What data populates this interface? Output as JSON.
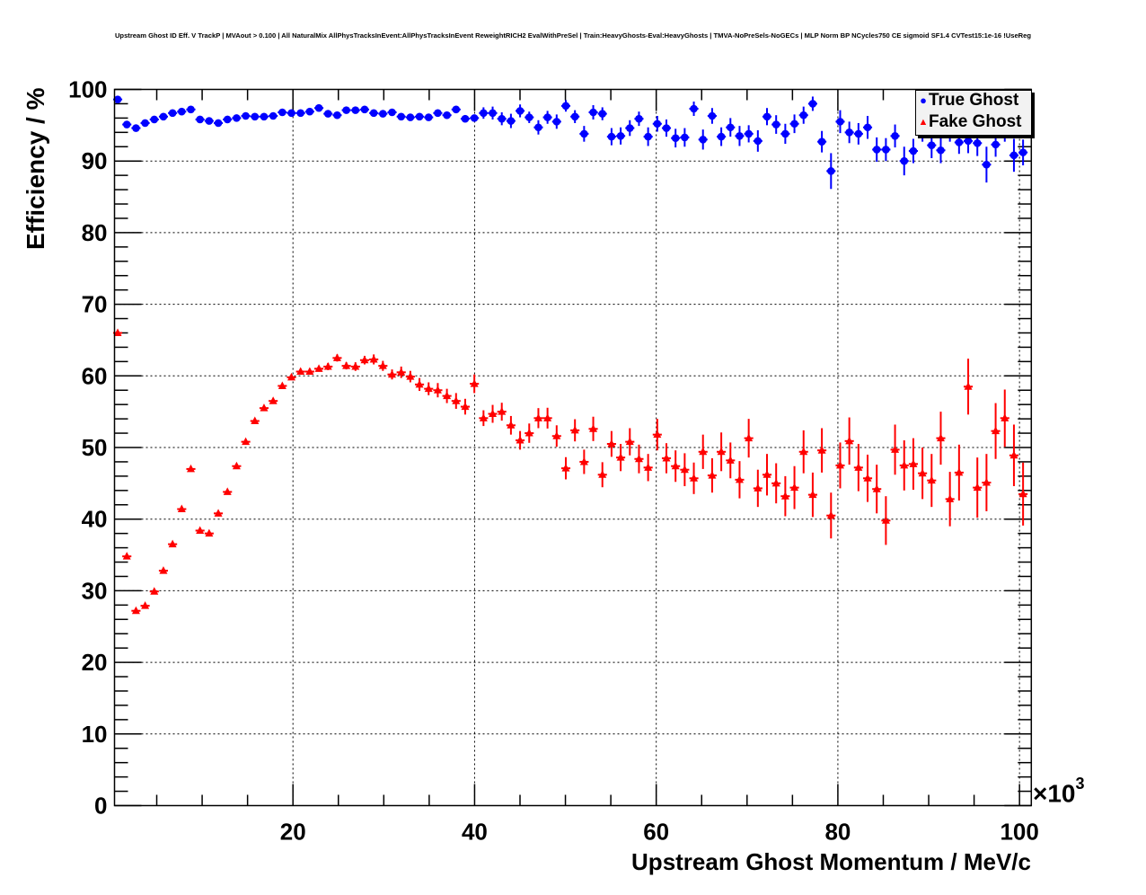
{
  "title": "Upstream Ghost ID Eff. V TrackP | MVAout > 0.100 | All NaturalMix AllPhysTracksInEvent:AllPhysTracksInEvent ReweightRICH2 EvalWithPreSel | Train:HeavyGhosts-Eval:HeavyGhosts | TMVA-NoPreSels-NoGECs | MLP Norm BP NCycles750 CE sigmoid SF1.4 CVTest15:1e-16 !UseReg",
  "chart_data": {
    "type": "scatter",
    "title": "Upstream Ghost ID Eff. V TrackP | MVAout > 0.100 | All NaturalMix AllPhysTracksInEvent:AllPhysTracksInEvent ReweightRICH2 EvalWithPreSel | Train:HeavyGhosts-Eval:HeavyGhosts | TMVA-NoPreSels-NoGECs | MLP Norm BP NCycles750 CE sigmoid SF1.4 CVTest15:1e-16 !UseReg",
    "xlabel": "Upstream Ghost Momentum / MeV/c",
    "ylabel": "Efficiency / %",
    "x_exponent_label": "×10",
    "x_exponent": "3",
    "xlim": [
      0.35,
      101.3
    ],
    "ylim": [
      0,
      100
    ],
    "x_ticks": [
      "20",
      "40",
      "60",
      "80",
      "100"
    ],
    "y_ticks": [
      "0",
      "10",
      "20",
      "30",
      "40",
      "50",
      "60",
      "70",
      "80",
      "90",
      "100"
    ],
    "grid": true,
    "legend_position": "top-right",
    "x_start": 0.7,
    "x_step": 1.007,
    "x_bin_half_width": 0.5,
    "series": [
      {
        "name": "True Ghost",
        "color": "#0000ff",
        "marker": "circle",
        "values": [
          98.6,
          95.1,
          94.6,
          95.3,
          95.8,
          96.2,
          96.7,
          96.9,
          97.2,
          95.8,
          95.6,
          95.3,
          95.8,
          96.0,
          96.3,
          96.2,
          96.2,
          96.3,
          96.8,
          96.7,
          96.7,
          96.9,
          97.4,
          96.6,
          96.4,
          97.1,
          97.1,
          97.2,
          96.7,
          96.6,
          96.8,
          96.2,
          96.1,
          96.2,
          96.1,
          96.7,
          96.4,
          97.2,
          95.9,
          96.0,
          96.7,
          96.7,
          95.9,
          95.6,
          97.0,
          96.1,
          94.7,
          96.1,
          95.5,
          97.7,
          96.2,
          93.8,
          96.8,
          96.6,
          93.4,
          93.5,
          94.6,
          95.9,
          93.4,
          95.2,
          94.6,
          93.2,
          93.3,
          97.3,
          93.0,
          96.3,
          93.4,
          94.7,
          93.5,
          93.8,
          92.8,
          96.2,
          95.1,
          93.8,
          95.2,
          96.4,
          98.0,
          92.7,
          88.6,
          95.5,
          94.0,
          93.8,
          94.7,
          91.6,
          91.6,
          93.5,
          90.0,
          91.4,
          94.5,
          92.2,
          91.5,
          94.5,
          92.6,
          92.8,
          92.5,
          89.5,
          92.3,
          94.5,
          90.8,
          91.2
        ],
        "errors": [
          0.3,
          0.3,
          0.3,
          0.3,
          0.3,
          0.3,
          0.3,
          0.3,
          0.3,
          0.4,
          0.4,
          0.4,
          0.4,
          0.4,
          0.4,
          0.4,
          0.4,
          0.4,
          0.4,
          0.4,
          0.4,
          0.4,
          0.4,
          0.4,
          0.4,
          0.4,
          0.4,
          0.4,
          0.4,
          0.4,
          0.4,
          0.4,
          0.4,
          0.4,
          0.4,
          0.4,
          0.4,
          0.4,
          0.4,
          0.4,
          0.8,
          0.9,
          0.9,
          1.0,
          0.9,
          0.8,
          1.0,
          0.9,
          1.0,
          0.8,
          0.9,
          1.1,
          1.0,
          0.9,
          1.2,
          1.2,
          1.1,
          1.0,
          1.3,
          1.1,
          1.2,
          1.3,
          1.3,
          1.0,
          1.4,
          1.1,
          1.3,
          1.3,
          1.4,
          1.2,
          1.5,
          1.2,
          1.3,
          1.4,
          1.3,
          1.2,
          1.0,
          1.5,
          2.5,
          1.6,
          1.5,
          1.5,
          1.6,
          1.7,
          1.6,
          1.6,
          2.0,
          1.7,
          1.8,
          1.8,
          1.8,
          1.8,
          1.6,
          1.7,
          1.8,
          2.5,
          1.7,
          1.8,
          2.3,
          1.8
        ]
      },
      {
        "name": "Fake Ghost",
        "color": "#ff0000",
        "marker": "triangle",
        "values": [
          66.0,
          34.8,
          27.2,
          27.9,
          29.9,
          32.8,
          36.5,
          41.4,
          47.0,
          38.4,
          38.0,
          40.8,
          43.8,
          47.4,
          50.8,
          53.7,
          55.5,
          56.5,
          58.6,
          59.8,
          60.6,
          60.6,
          61.0,
          61.3,
          62.5,
          61.4,
          61.3,
          62.2,
          62.3,
          61.4,
          60.2,
          60.5,
          59.9,
          58.8,
          58.2,
          58.0,
          57.2,
          56.5,
          55.7,
          58.9,
          54.1,
          54.7,
          55.0,
          53.1,
          51.0,
          52.0,
          54.1,
          54.1,
          51.6,
          47.1,
          52.4,
          48.0,
          52.6,
          46.2,
          50.5,
          48.6,
          50.8,
          48.4,
          47.2,
          51.8,
          48.5,
          47.4,
          46.9,
          45.7,
          49.4,
          46.1,
          49.4,
          48.2,
          45.5,
          51.3,
          44.3,
          46.2,
          45.0,
          43.2,
          44.4,
          49.4,
          43.4,
          49.6,
          40.5,
          47.5,
          50.9,
          47.2,
          45.7,
          44.2,
          39.8,
          49.7,
          47.5,
          47.7,
          46.4,
          45.4,
          51.3,
          42.8,
          46.5,
          58.5,
          44.4,
          45.1,
          52.3,
          54.1,
          48.9,
          43.5
        ],
        "errors": [
          0.3,
          0.3,
          0.3,
          0.3,
          0.3,
          0.3,
          0.3,
          0.3,
          0.3,
          0.3,
          0.3,
          0.3,
          0.3,
          0.3,
          0.3,
          0.3,
          0.3,
          0.3,
          0.3,
          0.3,
          0.4,
          0.4,
          0.4,
          0.5,
          0.5,
          0.5,
          0.6,
          0.6,
          0.7,
          0.7,
          0.7,
          0.8,
          0.8,
          0.9,
          0.9,
          1.0,
          1.0,
          1.1,
          1.1,
          1.3,
          1.1,
          1.25,
          1.25,
          1.3,
          1.3,
          1.35,
          1.4,
          1.45,
          1.5,
          1.55,
          1.55,
          1.7,
          1.7,
          1.75,
          1.8,
          1.9,
          1.9,
          2.0,
          1.9,
          2.2,
          2.1,
          2.2,
          2.3,
          2.2,
          2.4,
          2.4,
          2.7,
          2.5,
          2.6,
          2.7,
          2.6,
          2.9,
          2.8,
          2.8,
          3.0,
          3.0,
          3.1,
          3.1,
          3.2,
          3.2,
          3.3,
          3.3,
          3.3,
          3.4,
          3.4,
          3.5,
          3.5,
          3.6,
          3.6,
          3.7,
          3.7,
          3.8,
          3.9,
          3.9,
          4.2,
          4.0,
          3.9,
          4.0,
          4.3,
          4.4
        ]
      }
    ]
  }
}
